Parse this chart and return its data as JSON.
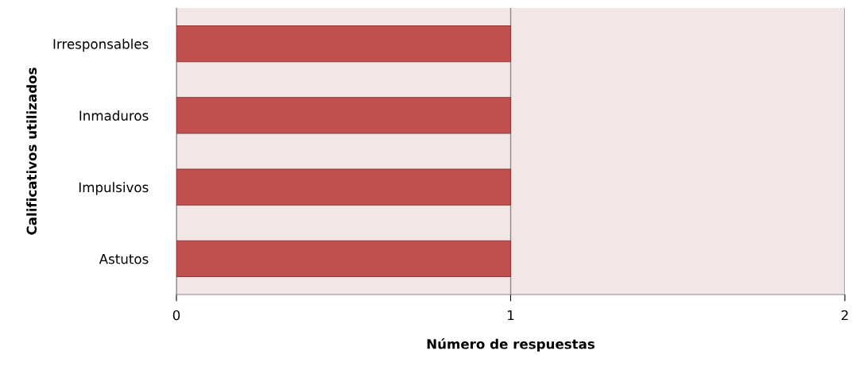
{
  "chart_data": {
    "type": "bar",
    "orientation": "horizontal",
    "xlabel": "Número de respuestas",
    "ylabel": "Calificativos utilizados",
    "categories": [
      "Irresponsables",
      "Inmaduros",
      "Impulsivos",
      "Astutos"
    ],
    "values": [
      1,
      1,
      1,
      1
    ],
    "color": "#c0504d",
    "xlim": [
      0,
      2
    ],
    "xticks": [
      0,
      1,
      2
    ],
    "grid": "x"
  }
}
